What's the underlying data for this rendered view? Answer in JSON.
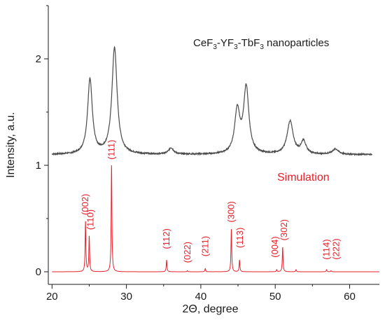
{
  "chart_data": {
    "type": "line",
    "title": "",
    "xlabel": "2Θ, degree",
    "ylabel": "Intensity, a.u.",
    "xlim": [
      19.5,
      64
    ],
    "ylim": [
      0,
      2.5
    ],
    "x_ticks": [
      20,
      30,
      40,
      50,
      60
    ],
    "y_ticks": [
      0,
      1,
      2
    ],
    "grid": false,
    "annotations": {
      "sample_prefix": "CeF",
      "sample_sub1": "3",
      "sample_mid1": "-YF",
      "sample_sub2": "3",
      "sample_mid2": "-TbF",
      "sample_sub3": "3",
      "sample_suffix": " nanoparticles",
      "simulation": "Simulation"
    },
    "series": [
      {
        "color": "#4a4a4a",
        "baseline": 1.1,
        "peaks": [
          {
            "x": 25.1,
            "height": 0.7,
            "width": 0.38
          },
          {
            "x": 28.4,
            "height": 1.0,
            "width": 0.42
          },
          {
            "x": 36.0,
            "height": 0.06,
            "width": 0.4
          },
          {
            "x": 44.9,
            "height": 0.4,
            "width": 0.42
          },
          {
            "x": 46.1,
            "height": 0.62,
            "width": 0.42
          },
          {
            "x": 52.0,
            "height": 0.31,
            "width": 0.48
          },
          {
            "x": 53.8,
            "height": 0.12,
            "width": 0.4
          },
          {
            "x": 58.1,
            "height": 0.05,
            "width": 0.5
          }
        ],
        "x_range": [
          20,
          63
        ]
      },
      {
        "color": "#e8202a",
        "baseline": 0.0,
        "peaks": [
          {
            "x": 24.5,
            "height": 0.47,
            "width": 0.06
          },
          {
            "x": 25.0,
            "height": 0.33,
            "width": 0.06
          },
          {
            "x": 28.0,
            "height": 1.0,
            "width": 0.06
          },
          {
            "x": 35.4,
            "height": 0.11,
            "width": 0.06
          },
          {
            "x": 38.2,
            "height": 0.01,
            "width": 0.06
          },
          {
            "x": 40.6,
            "height": 0.03,
            "width": 0.06
          },
          {
            "x": 44.1,
            "height": 0.4,
            "width": 0.06
          },
          {
            "x": 45.2,
            "height": 0.11,
            "width": 0.06
          },
          {
            "x": 50.2,
            "height": 0.02,
            "width": 0.06
          },
          {
            "x": 51.0,
            "height": 0.23,
            "width": 0.06
          },
          {
            "x": 52.8,
            "height": 0.02,
            "width": 0.06
          },
          {
            "x": 56.9,
            "height": 0.02,
            "width": 0.06
          },
          {
            "x": 57.5,
            "height": 0.01,
            "width": 0.06
          }
        ],
        "x_range": [
          20,
          64
        ]
      }
    ],
    "peak_labels": [
      {
        "text": "(002)",
        "x": 24.5,
        "y_top": 0.52
      },
      {
        "text": "(110)",
        "x": 25.2,
        "y_top": 0.38
      },
      {
        "text": "(111)",
        "x": 28.0,
        "y_top": 1.04
      },
      {
        "text": "(112)",
        "x": 35.4,
        "y_top": 0.2
      },
      {
        "text": "(022)",
        "x": 38.2,
        "y_top": 0.07
      },
      {
        "text": "(211)",
        "x": 40.6,
        "y_top": 0.13
      },
      {
        "text": "(300)",
        "x": 44.1,
        "y_top": 0.45
      },
      {
        "text": "(113)",
        "x": 45.3,
        "y_top": 0.21
      },
      {
        "text": "(004)",
        "x": 50.0,
        "y_top": 0.12
      },
      {
        "text": "(302)",
        "x": 51.2,
        "y_top": 0.28
      },
      {
        "text": "(114)",
        "x": 56.9,
        "y_top": 0.1
      },
      {
        "text": "(222)",
        "x": 58.2,
        "y_top": 0.1
      }
    ]
  }
}
